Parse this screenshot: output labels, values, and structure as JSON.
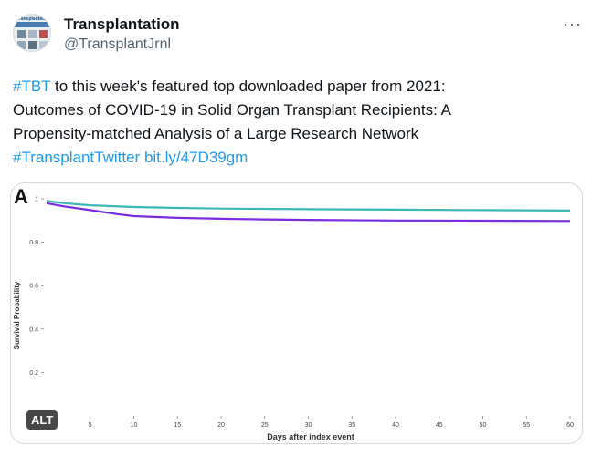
{
  "account": {
    "name": "Transplantation",
    "handle": "@TransplantJrnl",
    "avatar_text": "Transplantation"
  },
  "menu": {
    "more_icon": "more-icon",
    "more_label": "···"
  },
  "tweet": {
    "line1_tag": "#TBT",
    "line1_rest": " to this week's featured top downloaded paper from 2021:",
    "line2": "Outcomes of COVID-19 in Solid Organ Transplant Recipients: A",
    "line3": "Propensity-matched Analysis of a Large Research Network",
    "hashtag": "#TransplantTwitter",
    "link": "bit.ly/47D39gm"
  },
  "media": {
    "alt_label": "ALT",
    "panel_label": "A"
  },
  "chart_data": {
    "type": "line",
    "xlabel": "Days after index event",
    "ylabel": "Survival Probability",
    "xlim": [
      0,
      60
    ],
    "ylim": [
      0,
      1
    ],
    "x_ticks": [
      0,
      5,
      10,
      15,
      20,
      25,
      30,
      35,
      40,
      45,
      50,
      55,
      60
    ],
    "y_ticks": [
      0.2,
      0.4,
      0.6,
      0.8,
      1
    ],
    "y_tick_labels": [
      "0.2",
      "0.4",
      "0.6",
      "0.8",
      "1"
    ],
    "x_tick_labels": [
      "",
      "5",
      "10",
      "15",
      "20",
      "25",
      "30",
      "35",
      "40",
      "45",
      "50",
      "55",
      "60"
    ],
    "series": [
      {
        "color": "#3bb8b3",
        "x": [
          0,
          2,
          5,
          10,
          15,
          20,
          30,
          40,
          50,
          60
        ],
        "y": [
          0.99,
          0.98,
          0.97,
          0.962,
          0.958,
          0.955,
          0.952,
          0.95,
          0.948,
          0.946
        ]
      },
      {
        "color": "#7a2be0",
        "x": [
          0,
          2,
          5,
          8,
          10,
          15,
          20,
          25,
          30,
          40,
          50,
          60
        ],
        "y": [
          0.98,
          0.965,
          0.948,
          0.93,
          0.92,
          0.912,
          0.908,
          0.905,
          0.903,
          0.9,
          0.899,
          0.898
        ]
      }
    ]
  }
}
